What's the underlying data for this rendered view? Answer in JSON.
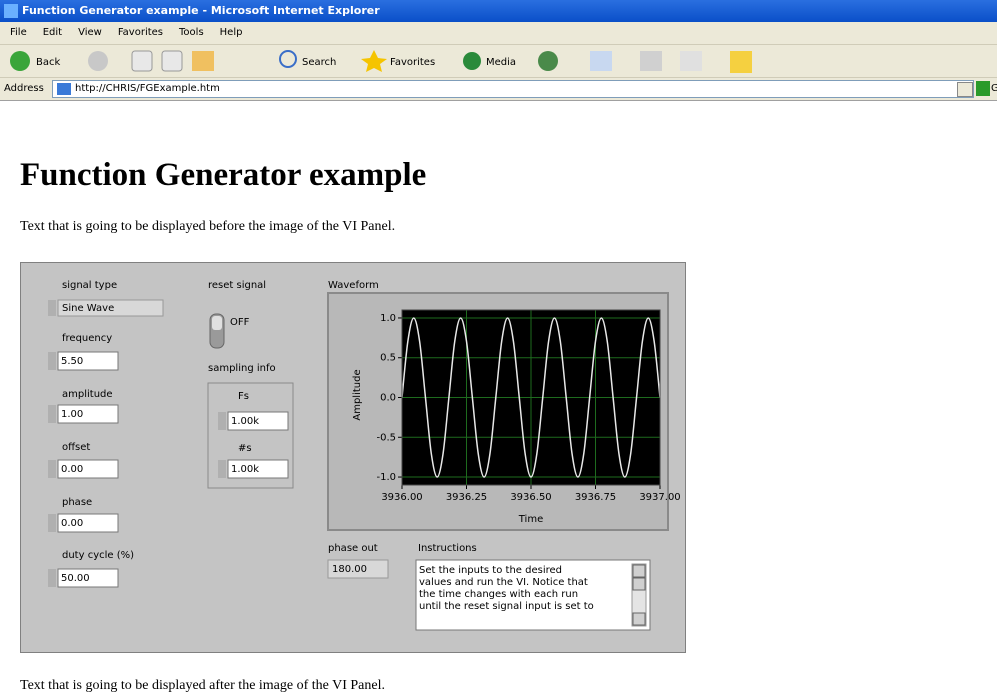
{
  "window": {
    "title": "Function Generator example - Microsoft Internet Explorer"
  },
  "menu": [
    "File",
    "Edit",
    "View",
    "Favorites",
    "Tools",
    "Help"
  ],
  "toolbar": {
    "back": "Back",
    "search": "Search",
    "favorites": "Favorites",
    "media": "Media"
  },
  "address": {
    "label": "Address",
    "url": "http://CHRIS/FGExample.htm",
    "go": "Go"
  },
  "content": {
    "heading": "Function Generator example",
    "text_before": "Text that is going to be displayed before the image of the VI Panel.",
    "text_after": "Text that is going to be displayed after the image of the VI Panel."
  },
  "panel": {
    "signal_type": {
      "label": "signal type",
      "value": "Sine Wave"
    },
    "frequency": {
      "label": "frequency",
      "value": "5.50"
    },
    "amplitude": {
      "label": "amplitude",
      "value": "1.00"
    },
    "offset": {
      "label": "offset",
      "value": "0.00"
    },
    "phase": {
      "label": "phase",
      "value": "0.00"
    },
    "duty_cycle": {
      "label": "duty cycle (%)",
      "value": "50.00"
    },
    "reset_signal": {
      "label": "reset signal",
      "state": "OFF"
    },
    "sampling_info": {
      "label": "sampling info",
      "fs_label": "Fs",
      "fs_value": "1.00k",
      "ns_label": "#s",
      "ns_value": "1.00k"
    },
    "phase_out": {
      "label": "phase out",
      "value": "180.00"
    },
    "instructions": {
      "label": "Instructions",
      "lines": [
        "Set the inputs to the desired",
        "values and run the VI.  Notice that",
        "the time changes with each run",
        "until the reset signal input is set to"
      ]
    }
  },
  "chart_data": {
    "type": "line",
    "title": "Waveform",
    "x_label": "Time",
    "y_label": "Amplitude",
    "x": [
      3936,
      3936.0227,
      3936.0455,
      3936.0682,
      3936.0909,
      3936.1136,
      3936.1364,
      3936.1591,
      3936.1818,
      3936.2045,
      3936.2273,
      3936.25,
      3936.2727,
      3936.2955,
      3936.3182,
      3936.3409,
      3936.3636,
      3936.3864,
      3936.4091,
      3936.4318,
      3936.4545,
      3936.4773,
      3936.5,
      3936.5227,
      3936.5455,
      3936.5682,
      3936.5909,
      3936.6136,
      3936.6364,
      3936.6591,
      3936.6818,
      3936.7045,
      3936.7273,
      3936.75,
      3936.7727,
      3936.7955,
      3936.8182,
      3936.8409,
      3936.8636,
      3936.8864,
      3936.9091,
      3936.9318,
      3936.9545,
      3936.9773,
      3937
    ],
    "series": [
      {
        "color": "#e8e8e8",
        "values": [
          0,
          0.707,
          1,
          0.707,
          0,
          -0.707,
          -1,
          -0.707,
          0,
          0.707,
          1,
          0.707,
          0,
          -0.707,
          -1,
          -0.707,
          0,
          0.707,
          1,
          0.707,
          0,
          -0.707,
          -1,
          -0.707,
          0,
          0.707,
          1,
          0.707,
          0,
          -0.707,
          -1,
          -0.707,
          0,
          0.707,
          1,
          0.707,
          0,
          -0.707,
          -1,
          -0.707,
          0,
          0.707,
          1,
          0.707,
          0
        ]
      }
    ],
    "xlim": [
      3936,
      3937
    ],
    "xticks": [
      {
        "value": 3936,
        "label": "3936.00"
      },
      {
        "value": 3936.25,
        "label": "3936.25"
      },
      {
        "value": 3936.5,
        "label": "3936.50"
      },
      {
        "value": 3936.75,
        "label": "3936.75"
      },
      {
        "value": 3937,
        "label": "3937.00"
      }
    ],
    "ylim": [
      -1.1,
      1.1
    ],
    "yticks": [
      {
        "value": 1,
        "label": "1.0"
      },
      0.5,
      {
        "value": 0,
        "label": "0.0"
      },
      -0.5,
      {
        "value": -1,
        "label": "-1.0"
      }
    ],
    "grid": true,
    "grid_color": "#1e6b1e",
    "background": "#000000"
  }
}
